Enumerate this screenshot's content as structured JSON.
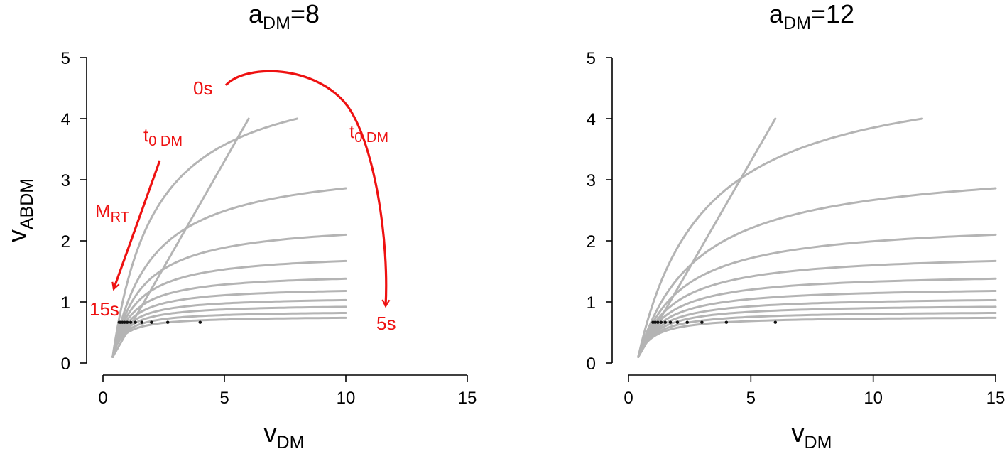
{
  "chart_data": [
    {
      "type": "line",
      "title": {
        "base": "a",
        "sub": "DM",
        "suffix": "=8"
      },
      "xlabel": {
        "base": "v",
        "sub": "DM"
      },
      "ylabel": {
        "base": "v",
        "sub": "ABDM"
      },
      "xlim": [
        0,
        15
      ],
      "ylim": [
        0,
        5
      ],
      "xticks": [
        "0",
        "5",
        "10",
        "15"
      ],
      "yticks": [
        "0",
        "1",
        "2",
        "3",
        "4",
        "5"
      ],
      "grid": false,
      "a_dm": 8,
      "curve_params": [
        {
          "x_start": 0.4,
          "x_end": 6,
          "y_end": 4
        },
        {
          "x_start": 0.4,
          "x_end": 8,
          "y_end": 4
        },
        {
          "x_start": 0.4,
          "x_end": 10,
          "y_end": 2.86
        },
        {
          "x_start": 0.4,
          "x_end": 10,
          "y_end": 2.1
        },
        {
          "x_start": 0.4,
          "x_end": 10,
          "y_end": 1.67
        },
        {
          "x_start": 0.4,
          "x_end": 10,
          "y_end": 1.38
        },
        {
          "x_start": 0.4,
          "x_end": 10,
          "y_end": 1.18
        },
        {
          "x_start": 0.4,
          "x_end": 10,
          "y_end": 1.03
        },
        {
          "x_start": 0.4,
          "x_end": 10,
          "y_end": 0.92
        },
        {
          "x_start": 0.4,
          "x_end": 10,
          "y_end": 0.82
        },
        {
          "x_start": 0.4,
          "x_end": 10,
          "y_end": 0.74
        }
      ],
      "dots": [
        {
          "x": 4.0,
          "y": 0.667
        },
        {
          "x": 2.667,
          "y": 0.667
        },
        {
          "x": 2.0,
          "y": 0.667
        },
        {
          "x": 1.6,
          "y": 0.667
        },
        {
          "x": 1.333,
          "y": 0.667
        },
        {
          "x": 1.143,
          "y": 0.667
        },
        {
          "x": 1.0,
          "y": 0.667
        },
        {
          "x": 0.889,
          "y": 0.667
        },
        {
          "x": 0.8,
          "y": 0.667
        },
        {
          "x": 0.727,
          "y": 0.667
        },
        {
          "x": 0.667,
          "y": 0.667
        }
      ],
      "annotations": {
        "label_0s": "0s",
        "label_5s": "5s",
        "label_15s": "15s",
        "t0_left": {
          "base": "t",
          "sub": "0 DM"
        },
        "t0_right": {
          "base": "t",
          "sub": "0 DM"
        },
        "mrt": {
          "base": "M",
          "sub": "RT"
        },
        "color": "#ee1111"
      }
    },
    {
      "type": "line",
      "title": {
        "base": "a",
        "sub": "DM",
        "suffix": "=12"
      },
      "xlabel": {
        "base": "v",
        "sub": "DM"
      },
      "xlim": [
        0,
        15
      ],
      "ylim": [
        0,
        5
      ],
      "xticks": [
        "0",
        "5",
        "10",
        "15"
      ],
      "yticks": [
        "0",
        "1",
        "2",
        "3",
        "4",
        "5"
      ],
      "grid": false,
      "a_dm": 12,
      "curve_params": [
        {
          "x_start": 0.4,
          "x_end": 6,
          "y_end": 4
        },
        {
          "x_start": 0.4,
          "x_end": 12,
          "y_end": 4
        },
        {
          "x_start": 0.4,
          "x_end": 15,
          "y_end": 2.86
        },
        {
          "x_start": 0.4,
          "x_end": 15,
          "y_end": 2.1
        },
        {
          "x_start": 0.4,
          "x_end": 15,
          "y_end": 1.67
        },
        {
          "x_start": 0.4,
          "x_end": 15,
          "y_end": 1.38
        },
        {
          "x_start": 0.4,
          "x_end": 15,
          "y_end": 1.18
        },
        {
          "x_start": 0.4,
          "x_end": 15,
          "y_end": 1.03
        },
        {
          "x_start": 0.4,
          "x_end": 15,
          "y_end": 0.92
        },
        {
          "x_start": 0.4,
          "x_end": 15,
          "y_end": 0.82
        },
        {
          "x_start": 0.4,
          "x_end": 15,
          "y_end": 0.74
        }
      ],
      "dots": [
        {
          "x": 6.0,
          "y": 0.667
        },
        {
          "x": 4.0,
          "y": 0.667
        },
        {
          "x": 3.0,
          "y": 0.667
        },
        {
          "x": 2.4,
          "y": 0.667
        },
        {
          "x": 2.0,
          "y": 0.667
        },
        {
          "x": 1.714,
          "y": 0.667
        },
        {
          "x": 1.5,
          "y": 0.667
        },
        {
          "x": 1.333,
          "y": 0.667
        },
        {
          "x": 1.2,
          "y": 0.667
        },
        {
          "x": 1.091,
          "y": 0.667
        },
        {
          "x": 1.0,
          "y": 0.667
        }
      ]
    }
  ],
  "colors": {
    "curve": "#b4b4b4",
    "dot": "#111111",
    "annotation": "#ee1111",
    "axis": "#000000"
  }
}
